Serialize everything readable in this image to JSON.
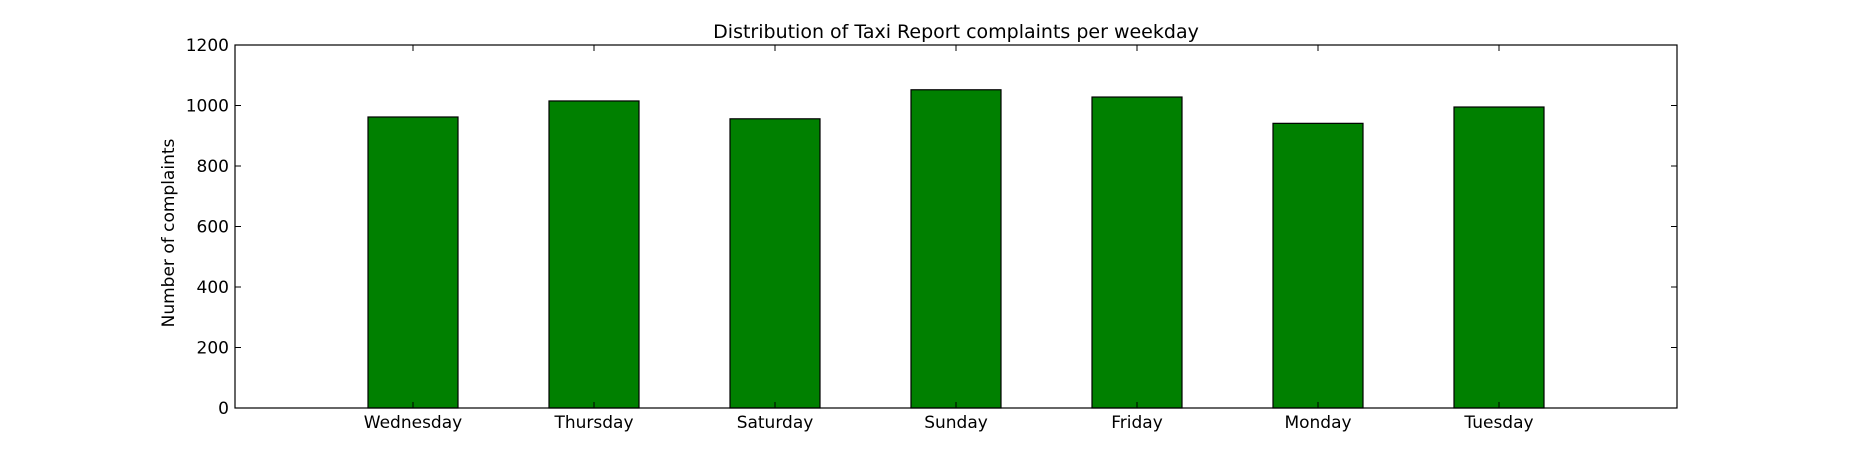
{
  "chart_data": {
    "type": "bar",
    "title": "Distribution of  Taxi Report complaints per weekday",
    "xlabel": "",
    "ylabel": "Number of complaints",
    "categories": [
      "Wednesday",
      "Thursday",
      "Saturday",
      "Sunday",
      "Friday",
      "Monday",
      "Tuesday"
    ],
    "values": [
      962,
      1015,
      956,
      1052,
      1028,
      941,
      995
    ],
    "ylim": [
      0,
      1200
    ],
    "yticks": [
      0,
      200,
      400,
      600,
      800,
      1000,
      1200
    ],
    "grid": false,
    "bar_color": "#008000",
    "edge_color": "#000000"
  }
}
